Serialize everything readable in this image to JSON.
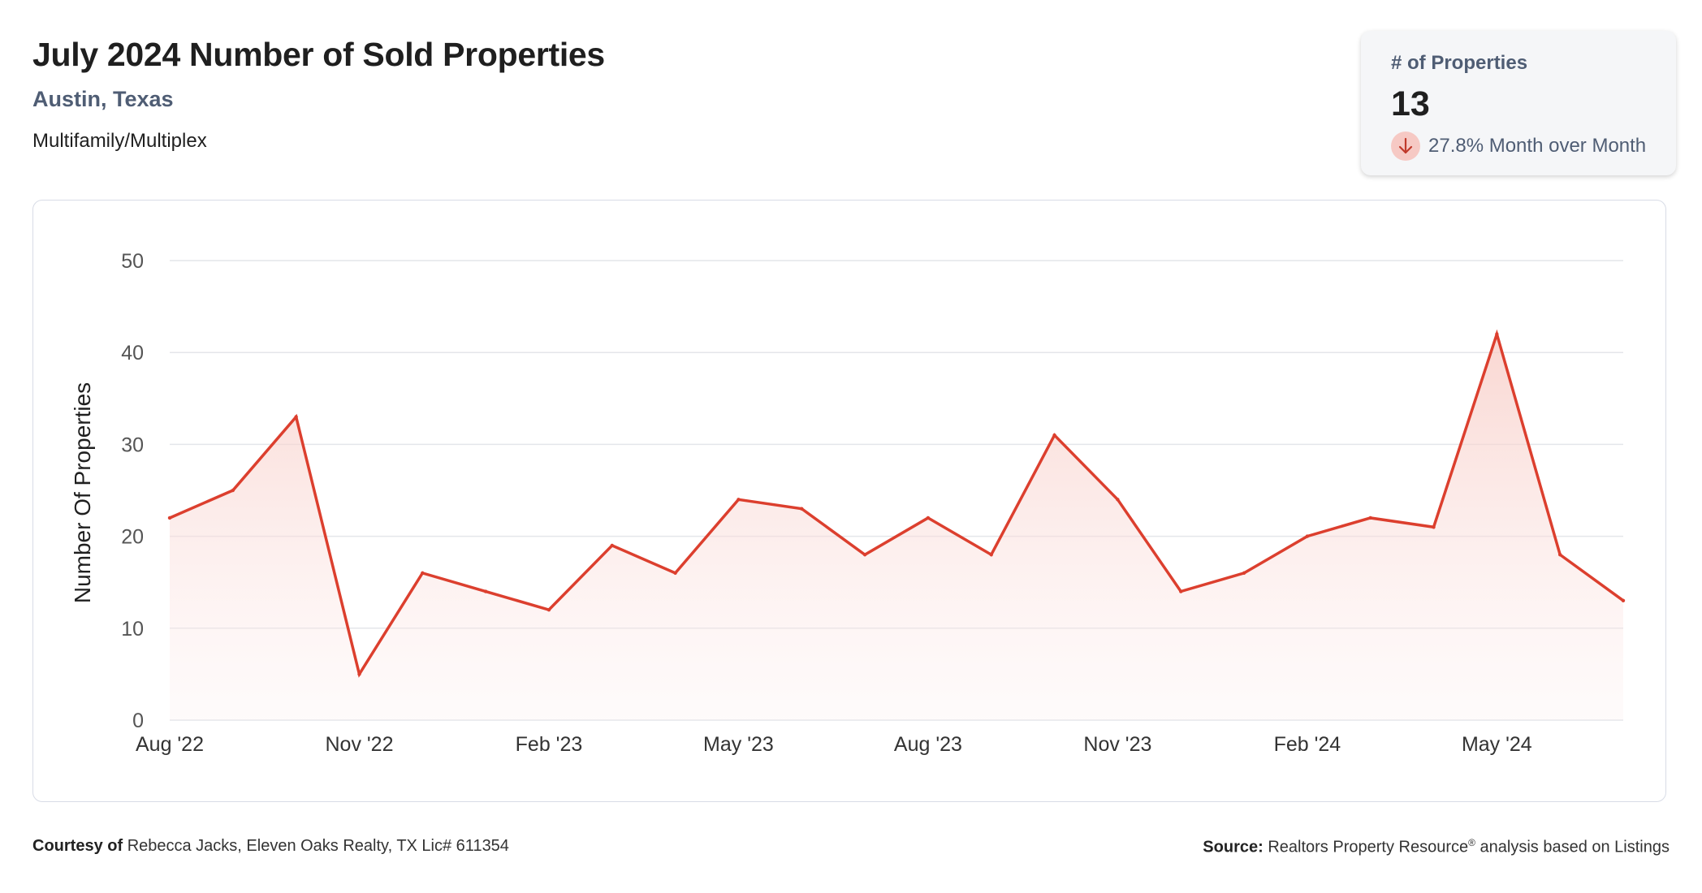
{
  "header": {
    "title": "July 2024 Number of Sold Properties",
    "location": "Austin, Texas",
    "property_type": "Multifamily/Multiplex"
  },
  "stat": {
    "label": "# of Properties",
    "value": "13",
    "change": "27.8% Month over Month",
    "direction_icon": "arrow-down-icon"
  },
  "colors": {
    "line": "#dc3f2e",
    "fill": "#fbe3e0",
    "accent_text": "#4f5d74"
  },
  "chart_data": {
    "type": "area",
    "title": "",
    "xlabel": "",
    "ylabel": "Number Of Properties",
    "ylim": [
      0,
      50
    ],
    "yticks": [
      0,
      10,
      20,
      30,
      40,
      50
    ],
    "grid": true,
    "x": [
      "Aug '22",
      "Sep '22",
      "Oct '22",
      "Nov '22",
      "Dec '22",
      "Jan '23",
      "Feb '23",
      "Mar '23",
      "Apr '23",
      "May '23",
      "Jun '23",
      "Jul '23",
      "Aug '23",
      "Sep '23",
      "Oct '23",
      "Nov '23",
      "Dec '23",
      "Jan '24",
      "Feb '24",
      "Mar '24",
      "Apr '24",
      "May '24",
      "Jun '24",
      "Jul '24"
    ],
    "xtick_labels": [
      "Aug '22",
      "Nov '22",
      "Feb '23",
      "May '23",
      "Aug '23",
      "Nov '23",
      "Feb '24",
      "May '24"
    ],
    "series": [
      {
        "values": [
          22,
          25,
          33,
          5,
          16,
          14,
          12,
          19,
          16,
          24,
          23,
          18,
          22,
          18,
          31,
          24,
          14,
          16,
          20,
          22,
          21,
          42,
          18,
          13
        ]
      }
    ]
  },
  "footer": {
    "courtesy_label": "Courtesy of",
    "courtesy_text": "Rebecca Jacks, Eleven Oaks Realty, TX Lic# 611354",
    "source_label": "Source:",
    "source_text": "Realtors Property Resource",
    "source_mark": "®",
    "source_suffix": "analysis based on Listings"
  }
}
